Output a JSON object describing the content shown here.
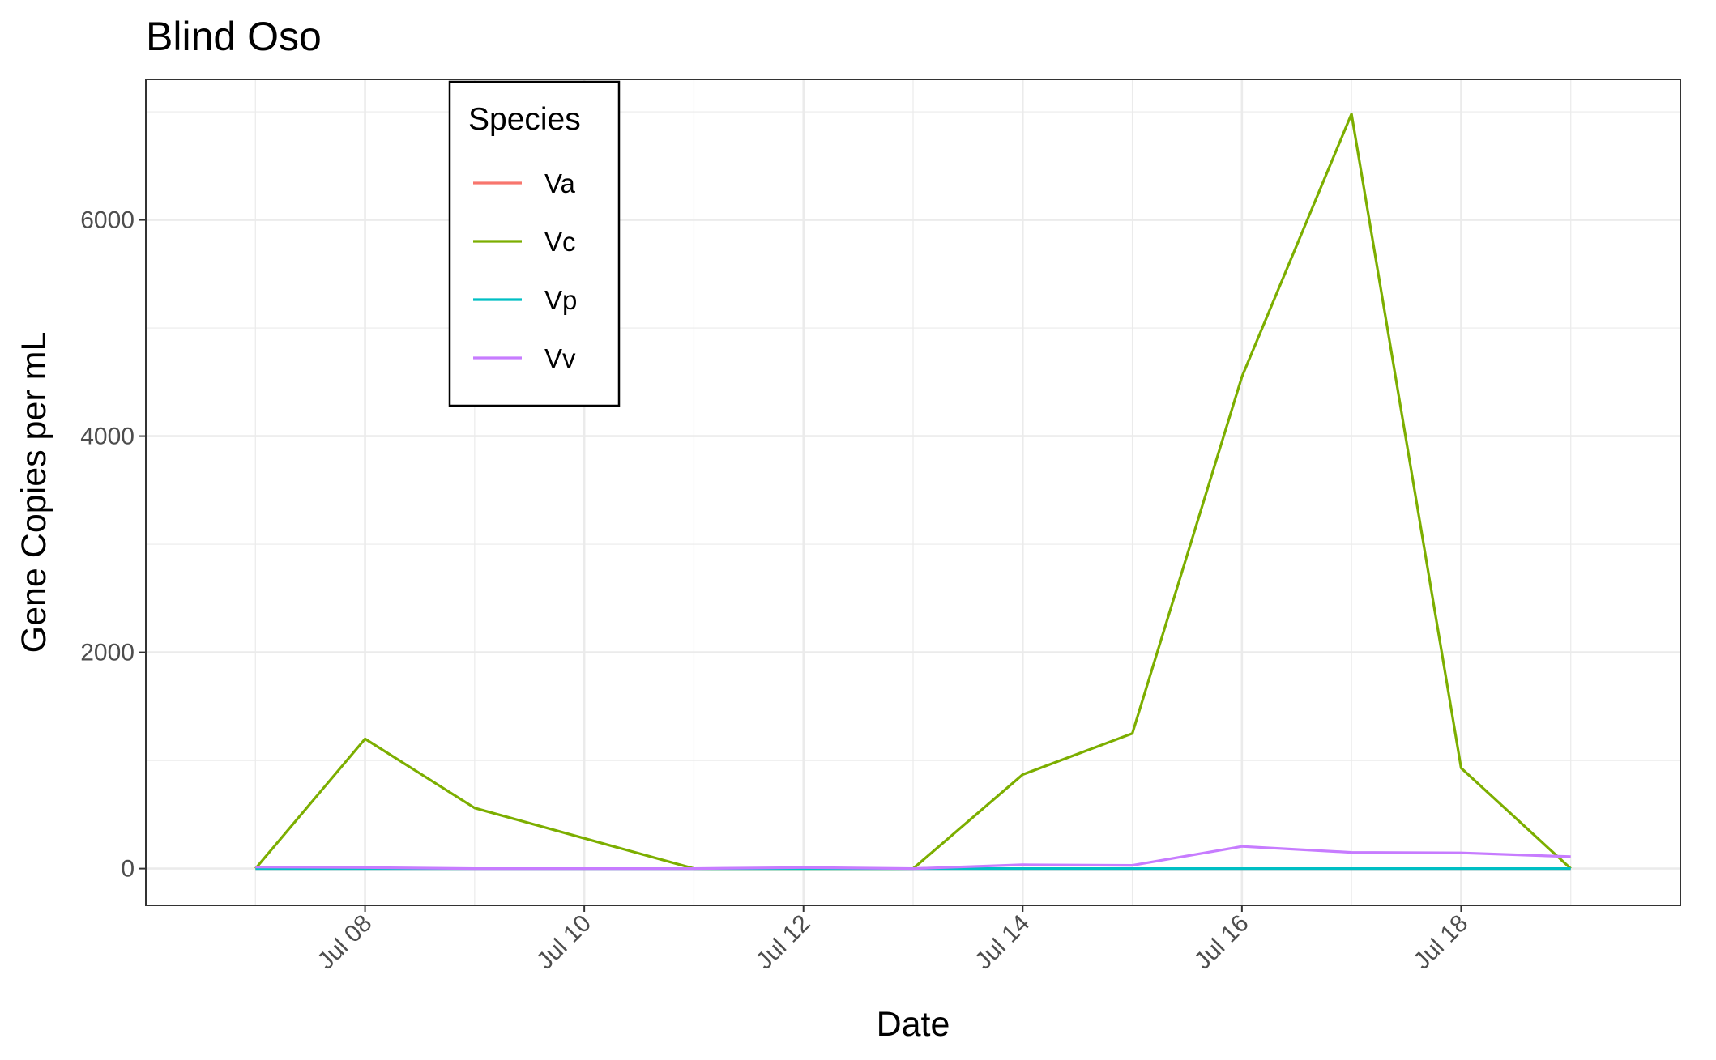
{
  "chart_data": {
    "type": "line",
    "title": "Blind Oso",
    "xlabel": "Date",
    "ylabel": "Gene Copies per mL",
    "x": [
      "2024-07-07",
      "2024-07-08",
      "2024-07-09",
      "2024-07-10",
      "2024-07-11",
      "2024-07-12",
      "2024-07-13",
      "2024-07-14",
      "2024-07-15",
      "2024-07-16",
      "2024-07-17",
      "2024-07-18",
      "2024-07-19"
    ],
    "xticks": [
      {
        "date": "2024-07-08",
        "label": "Jul 08"
      },
      {
        "date": "2024-07-10",
        "label": "Jul 10"
      },
      {
        "date": "2024-07-12",
        "label": "Jul 12"
      },
      {
        "date": "2024-07-14",
        "label": "Jul 14"
      },
      {
        "date": "2024-07-16",
        "label": "Jul 16"
      },
      {
        "date": "2024-07-18",
        "label": "Jul 18"
      }
    ],
    "xlim": [
      "2024-07-06",
      "2024-07-20"
    ],
    "yticks": [
      0,
      2000,
      4000,
      6000
    ],
    "ylim": [
      -340,
      7300
    ],
    "grid": true,
    "legend": {
      "title": "Species",
      "placement": "top-left inside plot"
    },
    "series": [
      {
        "name": "Va",
        "color": "#F8766D",
        "values": [
          0,
          0,
          0,
          0,
          0,
          0,
          0,
          0,
          0,
          0,
          0,
          0,
          0
        ]
      },
      {
        "name": "Vc",
        "color": "#7CAE00",
        "values": [
          0,
          1200,
          560,
          280,
          0,
          0,
          0,
          870,
          1250,
          4550,
          6980,
          930,
          0
        ]
      },
      {
        "name": "Vp",
        "color": "#00BFC4",
        "values": [
          0,
          0,
          0,
          0,
          0,
          0,
          0,
          0,
          0,
          0,
          0,
          0,
          0
        ]
      },
      {
        "name": "Vv",
        "color": "#C77CFF",
        "values": [
          15,
          10,
          0,
          0,
          0,
          10,
          0,
          35,
          30,
          205,
          150,
          145,
          110
        ]
      }
    ]
  }
}
